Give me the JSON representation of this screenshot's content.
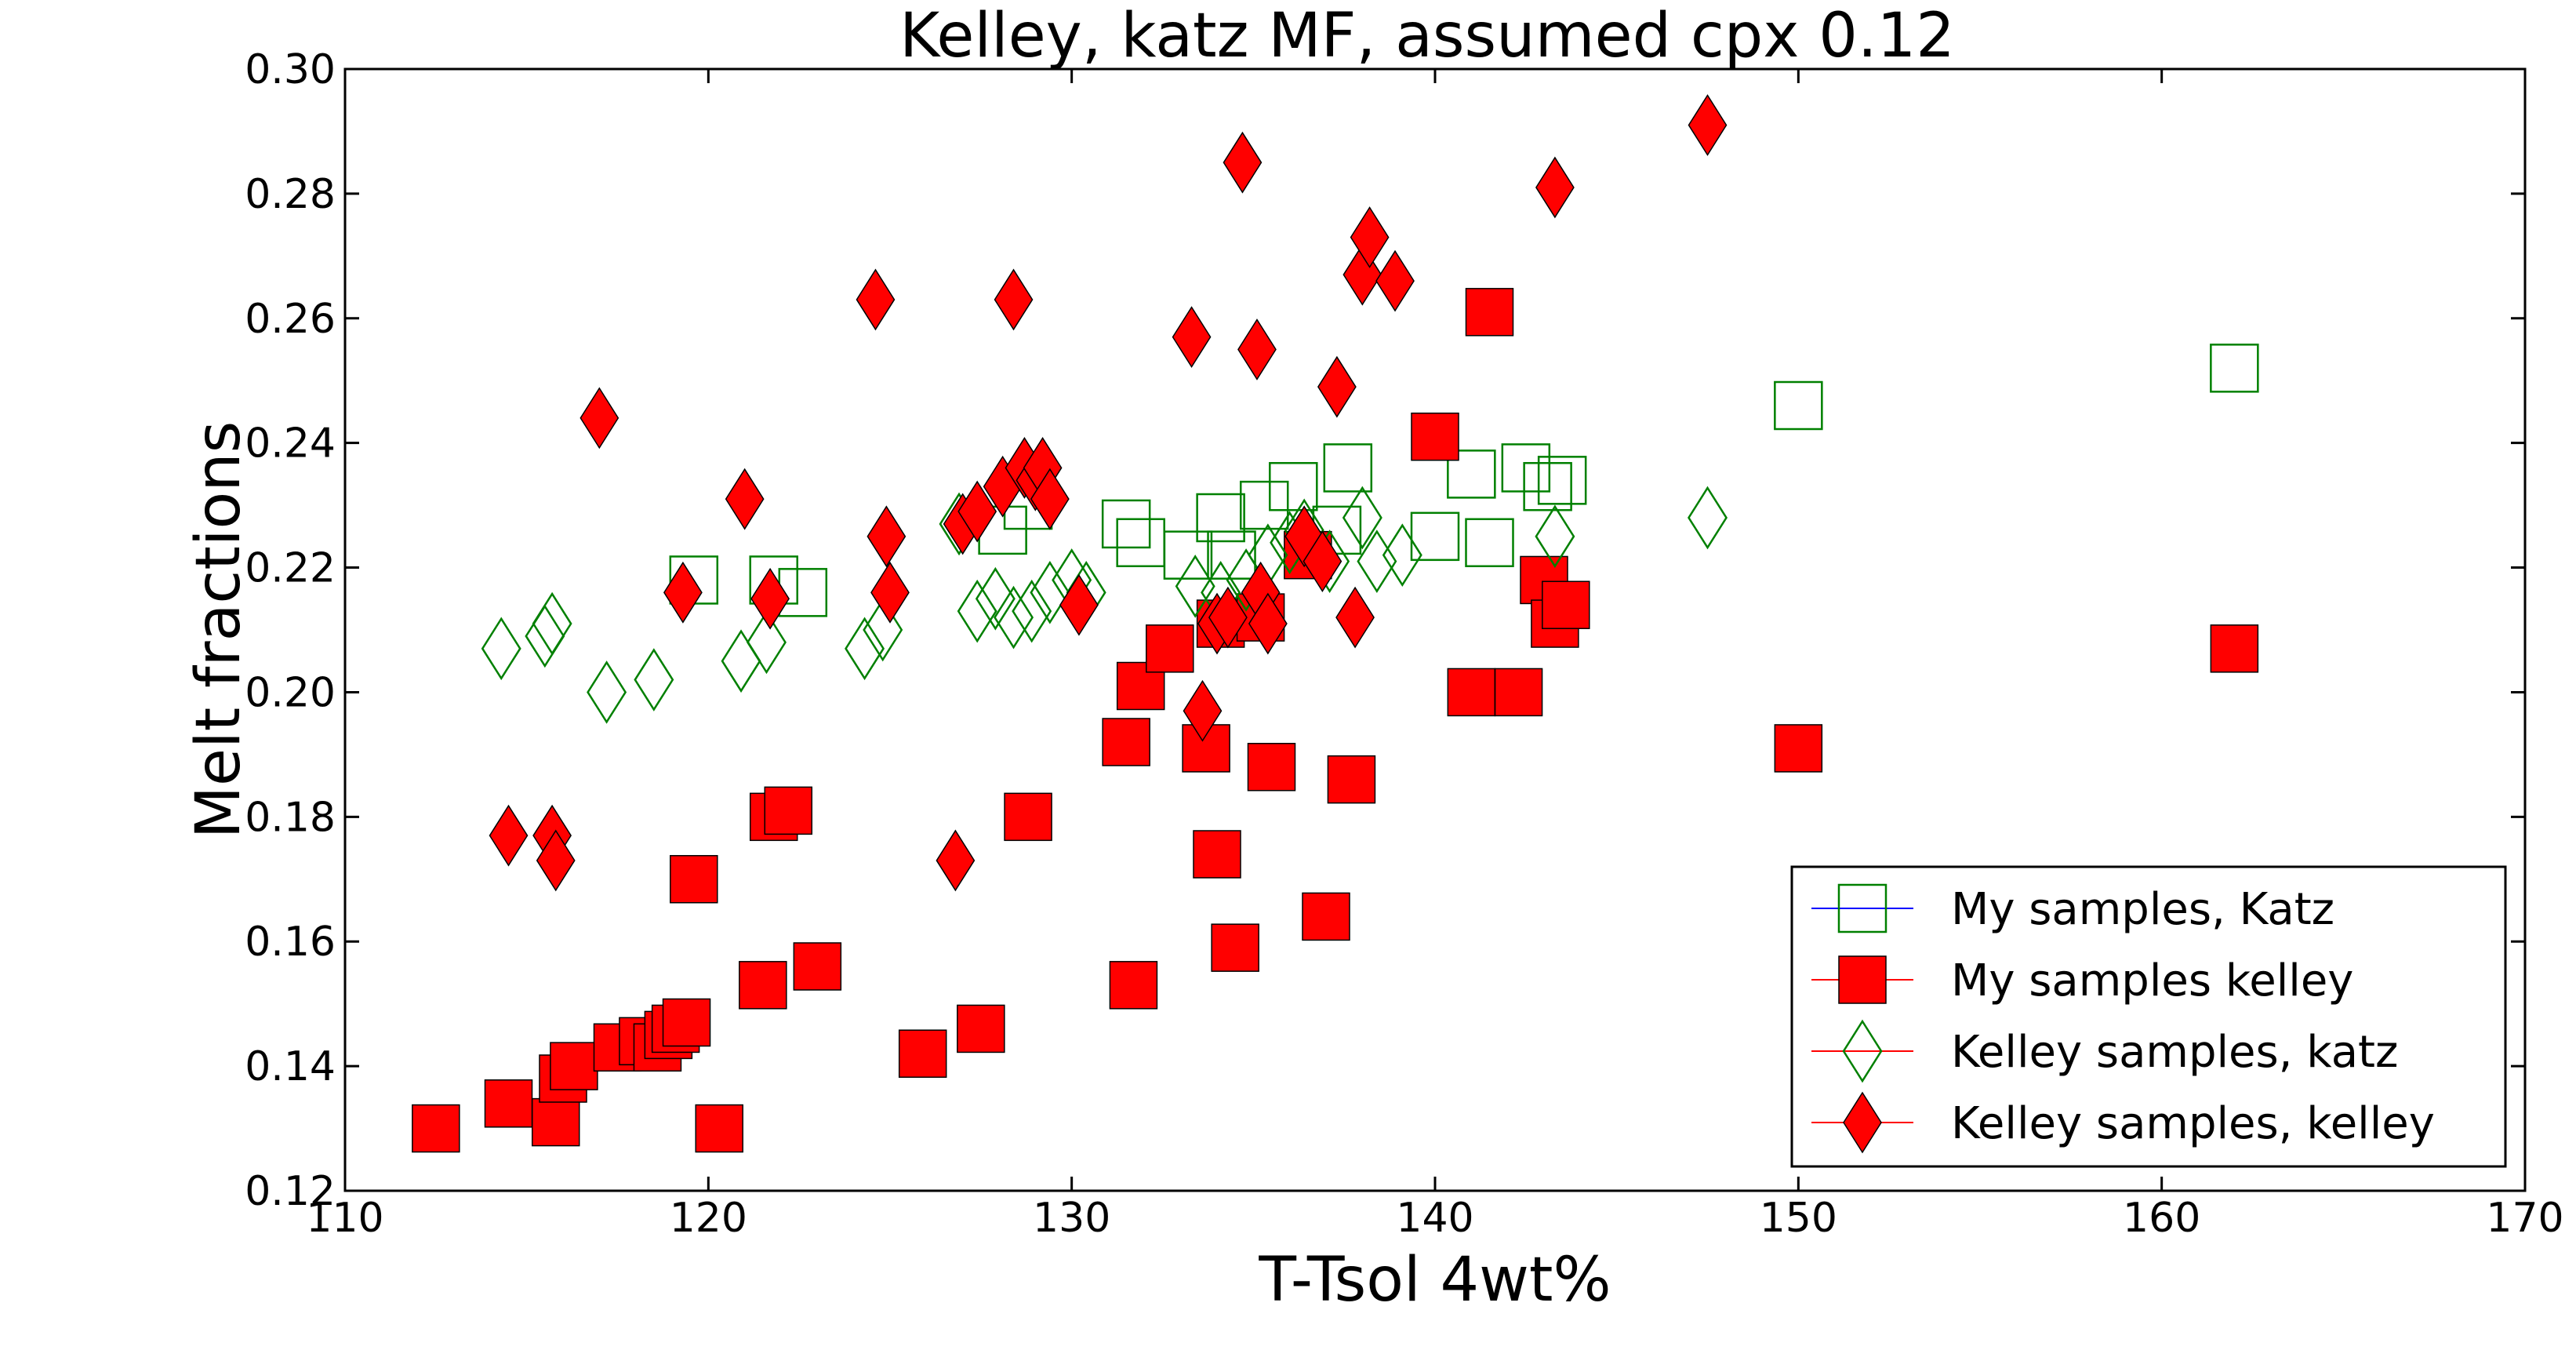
{
  "chart_data": {
    "type": "scatter",
    "title": "Kelley, katz MF, assumed cpx 0.12",
    "xlabel": "T-Tsol 4wt%",
    "ylabel": "Melt fractions",
    "xlim": [
      110,
      170
    ],
    "ylim": [
      0.12,
      0.3
    ],
    "xticks": [
      "110",
      "120",
      "130",
      "140",
      "150",
      "160",
      "170"
    ],
    "yticks": [
      "0.12",
      "0.14",
      "0.16",
      "0.18",
      "0.20",
      "0.22",
      "0.24",
      "0.26",
      "0.28",
      "0.30"
    ],
    "grid": false,
    "legend_position": "lower-right",
    "series": [
      {
        "name": "My samples, Katz",
        "marker": "square-open",
        "color": "#008000",
        "line_color": "#0000ff",
        "points": [
          [
            119.6,
            0.218
          ],
          [
            121.8,
            0.218
          ],
          [
            122.6,
            0.216
          ],
          [
            128.1,
            0.226
          ],
          [
            128.8,
            0.23
          ],
          [
            131.5,
            0.227
          ],
          [
            131.9,
            0.224
          ],
          [
            133.2,
            0.222
          ],
          [
            134.1,
            0.228
          ],
          [
            134.4,
            0.222
          ],
          [
            135.3,
            0.23
          ],
          [
            136.1,
            0.233
          ],
          [
            137.3,
            0.226
          ],
          [
            137.6,
            0.236
          ],
          [
            140.0,
            0.225
          ],
          [
            141.0,
            0.235
          ],
          [
            141.5,
            0.224
          ],
          [
            142.5,
            0.236
          ],
          [
            143.1,
            0.233
          ],
          [
            143.5,
            0.234
          ],
          [
            150.0,
            0.246
          ],
          [
            162.0,
            0.252
          ]
        ]
      },
      {
        "name": "My samples kelley",
        "marker": "square-filled",
        "color": "#ff0000",
        "line_color": "#ff0000",
        "points": [
          [
            112.5,
            0.13
          ],
          [
            114.5,
            0.134
          ],
          [
            115.8,
            0.131
          ],
          [
            116.0,
            0.138
          ],
          [
            116.3,
            0.14
          ],
          [
            117.5,
            0.143
          ],
          [
            118.2,
            0.144
          ],
          [
            118.6,
            0.143
          ],
          [
            118.9,
            0.145
          ],
          [
            119.1,
            0.146
          ],
          [
            119.4,
            0.147
          ],
          [
            119.6,
            0.17
          ],
          [
            120.3,
            0.13
          ],
          [
            121.5,
            0.153
          ],
          [
            121.8,
            0.18
          ],
          [
            122.2,
            0.181
          ],
          [
            123.0,
            0.156
          ],
          [
            125.9,
            0.142
          ],
          [
            127.5,
            0.146
          ],
          [
            128.8,
            0.18
          ],
          [
            131.5,
            0.192
          ],
          [
            131.7,
            0.153
          ],
          [
            131.9,
            0.201
          ],
          [
            132.7,
            0.207
          ],
          [
            133.7,
            0.191
          ],
          [
            134.0,
            0.174
          ],
          [
            134.1,
            0.211
          ],
          [
            134.5,
            0.159
          ],
          [
            135.2,
            0.212
          ],
          [
            135.5,
            0.188
          ],
          [
            136.5,
            0.222
          ],
          [
            137.0,
            0.164
          ],
          [
            137.7,
            0.186
          ],
          [
            140.0,
            0.241
          ],
          [
            141.0,
            0.2
          ],
          [
            141.5,
            0.261
          ],
          [
            142.3,
            0.2
          ],
          [
            143.0,
            0.218
          ],
          [
            143.3,
            0.211
          ],
          [
            143.6,
            0.214
          ],
          [
            150.0,
            0.191
          ],
          [
            162.0,
            0.207
          ]
        ]
      },
      {
        "name": "Kelley samples, katz",
        "marker": "diamond-open",
        "color": "#008000",
        "line_color": "#ff0000",
        "points": [
          [
            114.3,
            0.207
          ],
          [
            115.5,
            0.209
          ],
          [
            115.7,
            0.211
          ],
          [
            117.2,
            0.2
          ],
          [
            118.5,
            0.202
          ],
          [
            120.9,
            0.205
          ],
          [
            121.6,
            0.208
          ],
          [
            124.3,
            0.207
          ],
          [
            124.8,
            0.21
          ],
          [
            126.9,
            0.227
          ],
          [
            127.4,
            0.213
          ],
          [
            127.9,
            0.215
          ],
          [
            128.4,
            0.212
          ],
          [
            128.9,
            0.213
          ],
          [
            129.4,
            0.216
          ],
          [
            130.0,
            0.218
          ],
          [
            130.4,
            0.216
          ],
          [
            133.4,
            0.217
          ],
          [
            134.1,
            0.216
          ],
          [
            134.8,
            0.218
          ],
          [
            135.4,
            0.222
          ],
          [
            136.0,
            0.224
          ],
          [
            136.4,
            0.226
          ],
          [
            137.1,
            0.221
          ],
          [
            138.0,
            0.228
          ],
          [
            138.4,
            0.221
          ],
          [
            139.1,
            0.222
          ],
          [
            143.3,
            0.225
          ],
          [
            147.5,
            0.228
          ]
        ]
      },
      {
        "name": "Kelley samples, kelley",
        "marker": "diamond-filled",
        "color": "#ff0000",
        "line_color": "#ff0000",
        "points": [
          [
            114.5,
            0.177
          ],
          [
            115.7,
            0.177
          ],
          [
            115.8,
            0.173
          ],
          [
            117.0,
            0.244
          ],
          [
            119.3,
            0.216
          ],
          [
            121.0,
            0.231
          ],
          [
            121.7,
            0.215
          ],
          [
            124.6,
            0.263
          ],
          [
            124.9,
            0.225
          ],
          [
            125.0,
            0.216
          ],
          [
            126.8,
            0.173
          ],
          [
            127.0,
            0.227
          ],
          [
            127.4,
            0.229
          ],
          [
            128.1,
            0.233
          ],
          [
            128.4,
            0.263
          ],
          [
            128.7,
            0.236
          ],
          [
            129.0,
            0.234
          ],
          [
            129.2,
            0.236
          ],
          [
            129.4,
            0.231
          ],
          [
            130.2,
            0.214
          ],
          [
            133.3,
            0.257
          ],
          [
            133.6,
            0.197
          ],
          [
            134.0,
            0.211
          ],
          [
            134.3,
            0.212
          ],
          [
            134.7,
            0.285
          ],
          [
            135.1,
            0.255
          ],
          [
            135.2,
            0.216
          ],
          [
            135.4,
            0.211
          ],
          [
            136.4,
            0.225
          ],
          [
            136.9,
            0.221
          ],
          [
            137.3,
            0.249
          ],
          [
            137.8,
            0.212
          ],
          [
            138.0,
            0.267
          ],
          [
            138.2,
            0.273
          ],
          [
            138.9,
            0.266
          ],
          [
            143.3,
            0.281
          ],
          [
            147.5,
            0.291
          ]
        ]
      }
    ]
  }
}
